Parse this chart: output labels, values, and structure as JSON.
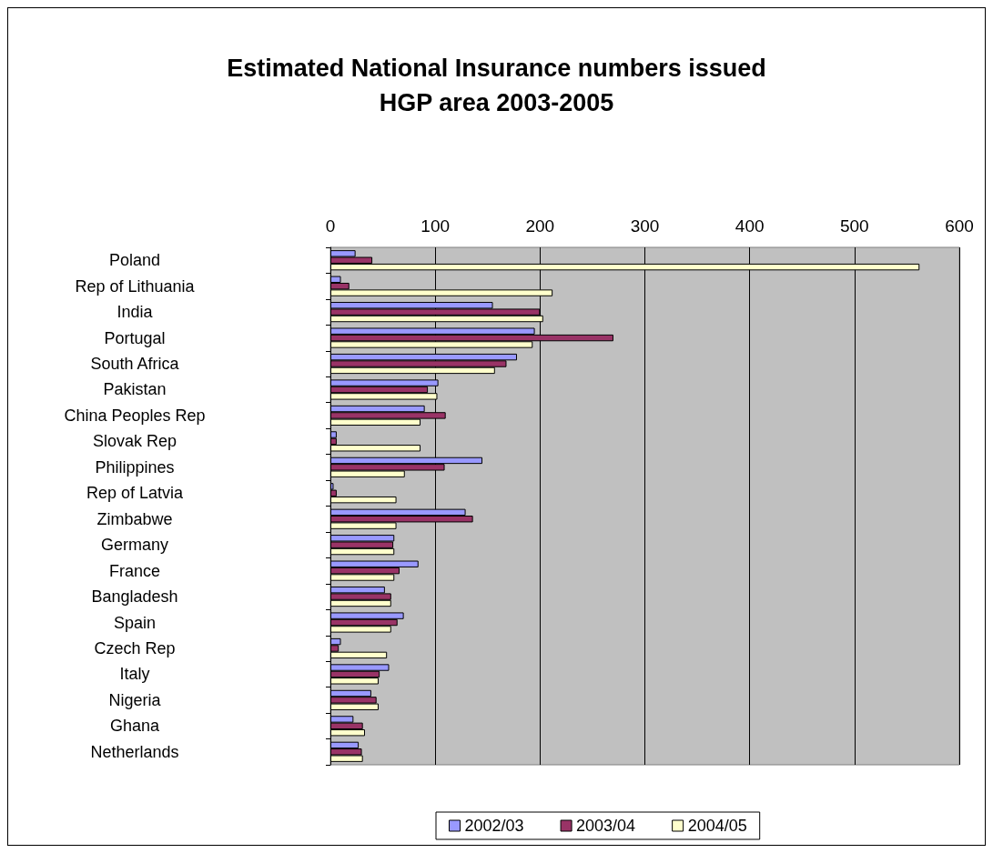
{
  "chart_data": {
    "type": "bar",
    "orientation": "horizontal",
    "title": "Estimated National Insurance numbers issued\nHGP area 2003-2005",
    "categories": [
      "Poland",
      "Rep of Lithuania",
      "India",
      "Portugal",
      "South Africa",
      "Pakistan",
      "China Peoples Rep",
      "Slovak Rep",
      "Philippines",
      "Rep of Latvia",
      "Zimbabwe",
      "Germany",
      "France",
      "Bangladesh",
      "Spain",
      "Czech Rep",
      "Italy",
      "Nigeria",
      "Ghana",
      "Netherlands"
    ],
    "series": [
      {
        "name": "2002/03",
        "color": "#9999ff",
        "values": [
          24,
          10,
          155,
          195,
          178,
          103,
          90,
          6,
          145,
          3,
          129,
          61,
          84,
          52,
          70,
          10,
          56,
          39,
          22,
          27
        ]
      },
      {
        "name": "2003/04",
        "color": "#993366",
        "values": [
          40,
          18,
          200,
          270,
          168,
          93,
          110,
          6,
          109,
          6,
          136,
          60,
          66,
          58,
          64,
          8,
          47,
          44,
          31,
          30
        ]
      },
      {
        "name": "2004/05",
        "color": "#ffffcc",
        "values": [
          562,
          212,
          203,
          193,
          157,
          102,
          86,
          86,
          71,
          63,
          63,
          61,
          61,
          58,
          58,
          54,
          46,
          46,
          33,
          31
        ]
      }
    ],
    "xlim": [
      0,
      600
    ],
    "xticks": [
      0,
      100,
      200,
      300,
      400,
      500,
      600
    ],
    "grid": "x",
    "legend": "bottom"
  }
}
